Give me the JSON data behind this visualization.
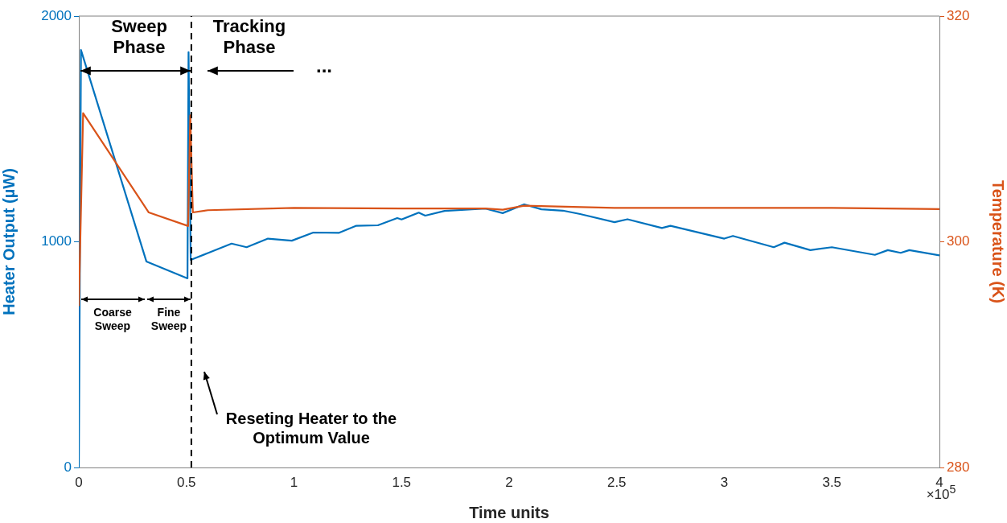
{
  "chart_data": {
    "type": "line",
    "xlabel": "Time units",
    "ylabel": "Heater Output (µW)",
    "y2label": "Temperature (K)",
    "xlim": [
      0,
      4
    ],
    "xticks": [
      0,
      0.5,
      1,
      1.5,
      2,
      2.5,
      3,
      3.5,
      4
    ],
    "ylim": [
      0,
      2000
    ],
    "yticks": [
      0,
      1000,
      2000
    ],
    "y2lim": [
      280,
      320
    ],
    "y2ticks": [
      280,
      300,
      320
    ],
    "grid": false,
    "legend": false,
    "marker": "none",
    "line_style": "solid",
    "series": [
      {
        "color": "#0072bd",
        "axis": "y",
        "x": [
          0,
          0.01,
          0.314,
          0.505,
          0.51,
          0.52,
          0.6,
          0.71,
          0.78,
          0.879,
          0.99,
          1.09,
          1.21,
          1.29,
          1.39,
          1.48,
          1.5,
          1.58,
          1.61,
          1.7,
          1.89,
          1.97,
          2.07,
          2.15,
          2.25,
          2.33,
          2.49,
          2.55,
          2.71,
          2.75,
          3.0,
          3.04,
          3.23,
          3.28,
          3.4,
          3.5,
          3.7,
          3.76,
          3.82,
          3.86,
          4.0
        ],
        "values": [
          0,
          1850,
          913,
          838,
          1840,
          920,
          950,
          992,
          976,
          1014,
          1005,
          1041,
          1040,
          1071,
          1073,
          1105,
          1099,
          1129,
          1116,
          1137,
          1147,
          1127,
          1166,
          1144,
          1138,
          1123,
          1087,
          1100,
          1061,
          1071,
          1014,
          1026,
          976,
          996,
          963,
          976,
          942,
          963,
          951,
          963,
          940
        ]
      },
      {
        "color": "#d95319",
        "axis": "y2",
        "x": [
          0,
          0.02,
          0.325,
          0.508,
          0.518,
          0.53,
          0.6,
          1.0,
          1.5,
          1.89,
          1.97,
          2.07,
          2.5,
          3.0,
          3.5,
          4.0
        ],
        "values": [
          294.3,
          311.4,
          302.6,
          301.4,
          311.2,
          302.6,
          302.8,
          303.0,
          302.95,
          302.95,
          302.84,
          303.2,
          303.0,
          303.0,
          303.0,
          302.9
        ]
      }
    ],
    "ref_lines": [
      {
        "axis": "x",
        "value": 0.523,
        "color": "#000000",
        "line_style": "dashed"
      }
    ],
    "annotations": [
      "Sweep Phase",
      "Tracking Phase",
      "...",
      "Coarse Sweep",
      "Fine Sweep",
      "Reseting Heater to the Optimum Value",
      "×10$^{5}$"
    ]
  }
}
